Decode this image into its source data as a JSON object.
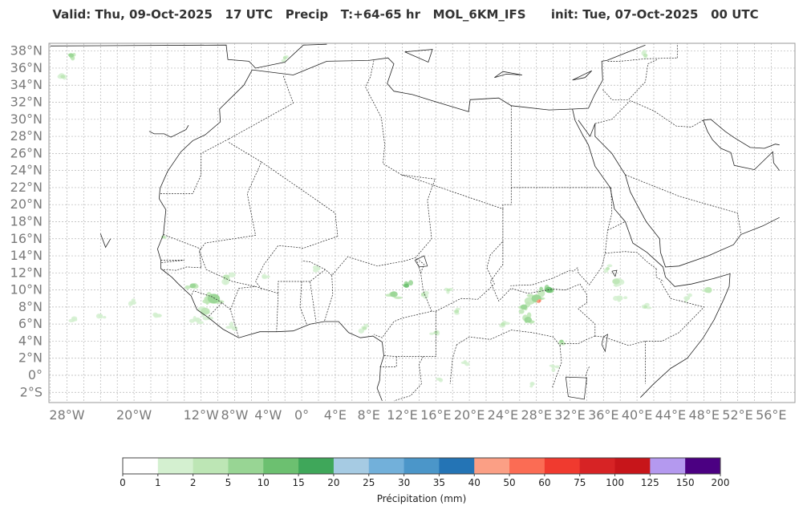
{
  "title": "Valid: Thu, 09-Oct-2025   17 UTC   Precip   T:+64-65 hr   MOL_6KM_IFS      init: Tue, 07-Oct-2025   00 UTC",
  "map": {
    "lat_labels": [
      "38°N",
      "36°N",
      "34°N",
      "32°N",
      "30°N",
      "28°N",
      "26°N",
      "24°N",
      "22°N",
      "20°N",
      "18°N",
      "16°N",
      "14°N",
      "12°N",
      "10°N",
      "8°N",
      "6°N",
      "4°N",
      "2°N",
      "0°",
      "2°S"
    ],
    "lat_values": [
      38,
      36,
      34,
      32,
      30,
      28,
      26,
      24,
      22,
      20,
      18,
      16,
      14,
      12,
      10,
      8,
      6,
      4,
      2,
      0,
      -2
    ],
    "lon_labels": [
      "28°W",
      "20°W",
      "12°W",
      "8°W",
      "4°W",
      "0°",
      "4°E",
      "8°E",
      "12°E",
      "16°E",
      "20°E",
      "24°E",
      "28°E",
      "32°E",
      "36°E",
      "40°E",
      "44°E",
      "48°E",
      "52°E",
      "56°E"
    ],
    "lon_values": [
      -28,
      -20,
      -12,
      -8,
      -4,
      0,
      4,
      8,
      12,
      16,
      20,
      24,
      28,
      32,
      36,
      40,
      44,
      48,
      52,
      56
    ],
    "extent": {
      "lon_min": -30,
      "lon_max": 57,
      "lat_min": -3,
      "lat_max": 38.8
    }
  },
  "colorbar": {
    "label": "Précipitation (mm)",
    "ticks": [
      "0",
      "1",
      "2",
      "5",
      "10",
      "15",
      "20",
      "25",
      "30",
      "35",
      "40",
      "50",
      "60",
      "75",
      "100",
      "125",
      "150",
      "200"
    ],
    "colors": [
      "#ffffff",
      "#d4f0d0",
      "#bde6b5",
      "#98d594",
      "#6cc070",
      "#3fa75a",
      "#a6cbe3",
      "#72b0da",
      "#4b96c9",
      "#2474b5",
      "#fb9f85",
      "#fb6c54",
      "#f03a2f",
      "#d72325",
      "#c7151a",
      "#b499ef",
      "#4b0082"
    ]
  },
  "precip": {
    "cells": [
      {
        "lon": -10.5,
        "lat": 9.0,
        "r": 1.6,
        "level": 3
      },
      {
        "lon": -11.5,
        "lat": 7.5,
        "r": 1.2,
        "level": 2
      },
      {
        "lon": -13.0,
        "lat": 10.5,
        "r": 0.8,
        "level": 3
      },
      {
        "lon": -9.0,
        "lat": 11.5,
        "r": 0.9,
        "level": 2
      },
      {
        "lon": -12.5,
        "lat": 6.5,
        "r": 0.7,
        "level": 1
      },
      {
        "lon": -8.0,
        "lat": 5.5,
        "r": 0.8,
        "level": 1
      },
      {
        "lon": -16.5,
        "lat": 16.2,
        "r": 0.5,
        "level": 2
      },
      {
        "lon": -20.0,
        "lat": 8.5,
        "r": 0.6,
        "level": 1
      },
      {
        "lon": -24.0,
        "lat": 7.0,
        "r": 0.6,
        "level": 1
      },
      {
        "lon": -27.0,
        "lat": 6.5,
        "r": 0.5,
        "level": 1
      },
      {
        "lon": -17.0,
        "lat": 7.0,
        "r": 0.5,
        "level": 1
      },
      {
        "lon": -28.5,
        "lat": 35.0,
        "r": 0.6,
        "level": 2
      },
      {
        "lon": -27.5,
        "lat": 37.5,
        "r": 0.7,
        "level": 3
      },
      {
        "lon": -2.0,
        "lat": 37.2,
        "r": 0.5,
        "level": 2
      },
      {
        "lon": 11.0,
        "lat": 9.5,
        "r": 1.0,
        "level": 3
      },
      {
        "lon": 12.5,
        "lat": 10.5,
        "r": 0.7,
        "level": 4
      },
      {
        "lon": 14.5,
        "lat": 9.5,
        "r": 0.6,
        "level": 2
      },
      {
        "lon": 17.5,
        "lat": 10.0,
        "r": 0.5,
        "level": 2
      },
      {
        "lon": 7.5,
        "lat": 5.5,
        "r": 0.6,
        "level": 2
      },
      {
        "lon": 16.0,
        "lat": 5.0,
        "r": 0.6,
        "level": 2
      },
      {
        "lon": 18.5,
        "lat": 7.5,
        "r": 0.6,
        "level": 2
      },
      {
        "lon": 28.0,
        "lat": 9.0,
        "r": 1.3,
        "level": 3
      },
      {
        "lon": 29.5,
        "lat": 10.0,
        "r": 1.0,
        "level": 4
      },
      {
        "lon": 26.5,
        "lat": 8.0,
        "r": 0.9,
        "level": 3
      },
      {
        "lon": 27.0,
        "lat": 6.5,
        "r": 1.0,
        "level": 3
      },
      {
        "lon": 28.4,
        "lat": 8.7,
        "r": 0.25,
        "level": 11
      },
      {
        "lon": 24.0,
        "lat": 6.0,
        "r": 0.6,
        "level": 2
      },
      {
        "lon": 31.0,
        "lat": 4.0,
        "r": 0.5,
        "level": 3
      },
      {
        "lon": 30.0,
        "lat": 1.0,
        "r": 0.5,
        "level": 1
      },
      {
        "lon": 27.5,
        "lat": -1.0,
        "r": 0.4,
        "level": 1
      },
      {
        "lon": 37.5,
        "lat": 11.0,
        "r": 1.0,
        "level": 2
      },
      {
        "lon": 38.0,
        "lat": 9.0,
        "r": 0.7,
        "level": 1
      },
      {
        "lon": 36.5,
        "lat": 12.5,
        "r": 0.5,
        "level": 2
      },
      {
        "lon": 41.0,
        "lat": 8.0,
        "r": 0.5,
        "level": 2
      },
      {
        "lon": 48.5,
        "lat": 10.0,
        "r": 1.0,
        "level": 2
      },
      {
        "lon": 46.0,
        "lat": 9.0,
        "r": 0.6,
        "level": 1
      },
      {
        "lon": 41.0,
        "lat": 37.5,
        "r": 0.6,
        "level": 2
      },
      {
        "lon": 2.0,
        "lat": 12.5,
        "r": 0.5,
        "level": 1
      },
      {
        "lon": -4.5,
        "lat": 11.5,
        "r": 0.5,
        "level": 1
      },
      {
        "lon": 19.5,
        "lat": 1.5,
        "r": 0.4,
        "level": 1
      },
      {
        "lon": 16.5,
        "lat": -0.5,
        "r": 0.4,
        "level": 1
      }
    ]
  }
}
